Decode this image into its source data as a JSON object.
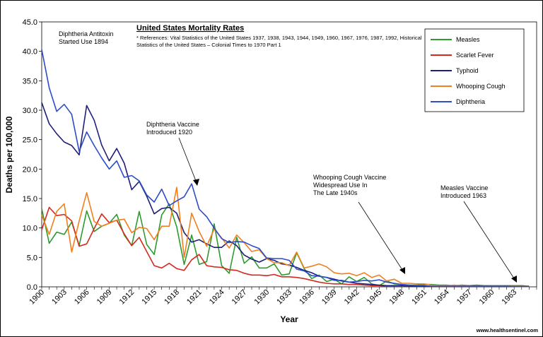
{
  "chart_data": {
    "type": "line",
    "title": "United States Mortality Rates",
    "references": [
      "* References: Vital Statistics of the United States 1937, 1938, 1943, 1944, 1949, 1960, 1967, 1976, 1987, 1992, Historical",
      "Statistics of the United States – Colonial Times to 1970 Part 1"
    ],
    "xlabel": "Year",
    "ylabel": "Deaths per 100,000",
    "xlim": [
      1900,
      1966
    ],
    "ylim": [
      0,
      45
    ],
    "yticks": [
      "0.0",
      "5.0",
      "10.0",
      "15.0",
      "20.0",
      "25.0",
      "30.0",
      "35.0",
      "40.0",
      "45.0"
    ],
    "xticks": [
      "1900",
      "1903",
      "1906",
      "1909",
      "1912",
      "1915",
      "1918",
      "1921",
      "1924",
      "1927",
      "1930",
      "1933",
      "1936",
      "1939",
      "1942",
      "1945",
      "1948",
      "1951",
      "1954",
      "1957",
      "1960",
      "1963"
    ],
    "series": [
      {
        "name": "Measles",
        "color": "#2e9b2e",
        "x": [
          1900,
          1901,
          1902,
          1903,
          1904,
          1905,
          1906,
          1907,
          1908,
          1909,
          1910,
          1911,
          1912,
          1913,
          1914,
          1915,
          1916,
          1917,
          1918,
          1919,
          1920,
          1921,
          1922,
          1923,
          1924,
          1925,
          1926,
          1927,
          1928,
          1929,
          1930,
          1931,
          1932,
          1933,
          1934,
          1935,
          1936,
          1937,
          1938,
          1939,
          1940,
          1941,
          1942,
          1943,
          1944,
          1945,
          1946,
          1947,
          1948,
          1949,
          1950,
          1951,
          1952,
          1953,
          1954,
          1955,
          1956,
          1957,
          1958,
          1959,
          1960,
          1961,
          1962,
          1963,
          1964,
          1965
        ],
        "values": [
          13.3,
          7.4,
          9.3,
          8.9,
          11.0,
          7.0,
          12.9,
          9.4,
          10.3,
          10.8,
          12.3,
          8.8,
          7.0,
          12.8,
          7.2,
          5.5,
          12.2,
          14.1,
          10.2,
          3.8,
          8.8,
          3.8,
          4.3,
          10.7,
          3.6,
          2.3,
          8.4,
          4.0,
          5.1,
          3.2,
          3.2,
          3.9,
          2.0,
          2.2,
          5.8,
          3.1,
          1.4,
          2.0,
          0.9,
          1.3,
          0.5,
          1.7,
          0.9,
          1.6,
          0.5,
          0.2,
          1.0,
          0.5,
          0.4,
          0.3,
          0.3,
          0.4,
          0.4,
          0.3,
          0.3,
          0.2,
          0.3,
          0.2,
          0.3,
          0.2,
          0.2,
          0.2,
          0.2,
          0.2,
          0.2,
          0.1
        ]
      },
      {
        "name": "Scarlet Fever",
        "color": "#d42a1e",
        "x": [
          1900,
          1901,
          1902,
          1903,
          1904,
          1905,
          1906,
          1907,
          1908,
          1909,
          1910,
          1911,
          1912,
          1913,
          1914,
          1915,
          1916,
          1917,
          1918,
          1919,
          1920,
          1921,
          1922,
          1923,
          1924,
          1925,
          1926,
          1927,
          1928,
          1929,
          1930,
          1931,
          1932,
          1933,
          1934,
          1935,
          1936,
          1937,
          1938,
          1939,
          1940,
          1941,
          1942,
          1943,
          1944,
          1945,
          1946,
          1947,
          1948,
          1949,
          1950,
          1951,
          1952,
          1953,
          1954,
          1955,
          1956,
          1957,
          1958,
          1959,
          1960,
          1961,
          1962,
          1963,
          1964,
          1965
        ],
        "values": [
          9.7,
          13.5,
          12.1,
          12.3,
          11.2,
          6.9,
          7.3,
          9.9,
          12.4,
          10.9,
          11.3,
          9.0,
          7.0,
          8.4,
          6.0,
          3.6,
          3.2,
          4.0,
          3.1,
          2.8,
          4.6,
          5.5,
          3.6,
          3.4,
          3.3,
          2.9,
          2.8,
          2.3,
          2.0,
          2.0,
          1.9,
          2.1,
          1.7,
          1.7,
          1.6,
          1.4,
          1.1,
          0.8,
          0.6,
          0.5,
          0.5,
          0.4,
          0.4,
          0.3,
          0.2,
          0.2,
          0.1,
          0.1,
          0.1,
          0.1,
          0.1,
          0.1,
          0.1,
          0.1,
          0.1,
          0.1,
          0.1,
          0.1,
          0.1,
          0.1,
          0.1,
          0.1,
          0.1,
          0.1,
          0.1,
          0.1
        ]
      },
      {
        "name": "Typhoid",
        "color": "#1f1f7a",
        "x": [
          1900,
          1901,
          1902,
          1903,
          1904,
          1905,
          1906,
          1907,
          1908,
          1909,
          1910,
          1911,
          1912,
          1913,
          1914,
          1915,
          1916,
          1917,
          1918,
          1919,
          1920,
          1921,
          1922,
          1923,
          1924,
          1925,
          1926,
          1927,
          1928,
          1929,
          1930,
          1931,
          1932,
          1933,
          1934,
          1935,
          1936,
          1937,
          1938,
          1939,
          1940,
          1941,
          1942,
          1943,
          1944,
          1945,
          1946,
          1947,
          1948,
          1949,
          1950,
          1951,
          1952,
          1953,
          1954,
          1955,
          1956,
          1957,
          1958,
          1959,
          1960,
          1961,
          1962,
          1963,
          1964,
          1965
        ],
        "values": [
          31.3,
          27.7,
          26.0,
          24.6,
          24.0,
          22.4,
          30.8,
          28.3,
          24.1,
          21.4,
          23.5,
          21.0,
          16.5,
          17.9,
          15.4,
          12.4,
          13.3,
          13.5,
          12.5,
          9.2,
          7.6,
          8.0,
          7.3,
          6.7,
          6.7,
          7.8,
          7.0,
          5.4,
          4.7,
          4.2,
          4.8,
          4.5,
          3.9,
          3.7,
          3.3,
          2.8,
          2.4,
          1.8,
          1.6,
          1.3,
          1.0,
          0.8,
          0.6,
          0.5,
          0.4,
          0.3,
          0.2,
          0.2,
          0.2,
          0.1,
          0.1,
          0.1,
          0.1,
          0.1,
          0.1,
          0.05,
          0.05,
          0.05,
          0.05,
          0.05,
          0.05,
          0.05,
          0.05,
          0.05,
          0.05,
          0.05
        ]
      },
      {
        "name": "Whooping Cough",
        "color": "#f0801e",
        "x": [
          1900,
          1901,
          1902,
          1903,
          1904,
          1905,
          1906,
          1907,
          1908,
          1909,
          1910,
          1911,
          1912,
          1913,
          1914,
          1915,
          1916,
          1917,
          1918,
          1919,
          1920,
          1921,
          1922,
          1923,
          1924,
          1925,
          1926,
          1927,
          1928,
          1929,
          1930,
          1931,
          1932,
          1933,
          1934,
          1935,
          1936,
          1937,
          1938,
          1939,
          1940,
          1941,
          1942,
          1943,
          1944,
          1945,
          1946,
          1947,
          1948,
          1949,
          1950,
          1951,
          1952,
          1953,
          1954,
          1955,
          1956,
          1957,
          1958,
          1959,
          1960,
          1961,
          1962,
          1963,
          1964,
          1965
        ],
        "values": [
          12.2,
          8.9,
          12.8,
          14.1,
          5.9,
          11.2,
          16.0,
          11.1,
          10.3,
          10.8,
          11.3,
          11.5,
          9.2,
          10.1,
          9.9,
          8.0,
          10.3,
          10.3,
          16.9,
          5.0,
          12.5,
          9.4,
          6.9,
          9.8,
          8.3,
          6.6,
          8.8,
          7.5,
          6.0,
          6.3,
          4.8,
          4.1,
          4.1,
          3.6,
          5.9,
          3.2,
          3.5,
          3.9,
          3.4,
          2.4,
          2.2,
          2.3,
          1.9,
          2.4,
          1.6,
          2.0,
          1.0,
          1.3,
          0.6,
          0.6,
          0.5,
          0.5,
          0.3,
          0.2,
          0.2,
          0.3,
          0.2,
          0.1,
          0.1,
          0.1,
          0.1,
          0.1,
          0.1,
          0.1,
          0.05,
          0.05
        ]
      },
      {
        "name": "Diphtheria",
        "color": "#2c4cc8",
        "x": [
          1900,
          1901,
          1902,
          1903,
          1904,
          1905,
          1906,
          1907,
          1908,
          1909,
          1910,
          1911,
          1912,
          1913,
          1914,
          1915,
          1916,
          1917,
          1918,
          1919,
          1920,
          1921,
          1922,
          1923,
          1924,
          1925,
          1926,
          1927,
          1928,
          1929,
          1930,
          1931,
          1932,
          1933,
          1934,
          1935,
          1936,
          1937,
          1938,
          1939,
          1940,
          1941,
          1942,
          1943,
          1944,
          1945,
          1946,
          1947,
          1948,
          1949,
          1950,
          1951,
          1952,
          1953,
          1954,
          1955,
          1956,
          1957,
          1958,
          1959,
          1960,
          1961,
          1962,
          1963,
          1964,
          1965
        ],
        "values": [
          40.3,
          33.8,
          29.8,
          31.0,
          29.3,
          23.0,
          26.3,
          24.0,
          21.9,
          20.0,
          21.4,
          18.6,
          18.9,
          18.0,
          15.6,
          14.4,
          16.6,
          13.8,
          14.6,
          15.3,
          17.5,
          13.2,
          11.9,
          10.0,
          8.2,
          7.5,
          7.7,
          7.6,
          7.0,
          6.5,
          4.9,
          4.8,
          4.8,
          4.5,
          3.0,
          2.7,
          1.9,
          1.8,
          1.6,
          1.1,
          1.1,
          0.8,
          0.9,
          1.1,
          1.0,
          1.2,
          0.8,
          0.6,
          0.4,
          0.3,
          0.2,
          0.2,
          0.1,
          0.1,
          0.1,
          0.1,
          0.1,
          0.1,
          0.1,
          0.1,
          0.1,
          0.1,
          0.1,
          0.05,
          0.05,
          0.05
        ]
      }
    ],
    "annotations": [
      {
        "lines": [
          "Diphtheria Antitoxin",
          "Started Use 1894"
        ]
      },
      {
        "lines": [
          "Diphtheria Vaccine",
          "Introduced 1920"
        ]
      },
      {
        "lines": [
          "Whooping Cough Vaccine",
          "Widespread Use In",
          "The Late 1940s"
        ]
      },
      {
        "lines": [
          "Measles Vaccine",
          "Introduced 1963"
        ]
      }
    ],
    "legend_position": "top-right",
    "grid": false
  },
  "source_credit": "www.healthsentinel.com"
}
